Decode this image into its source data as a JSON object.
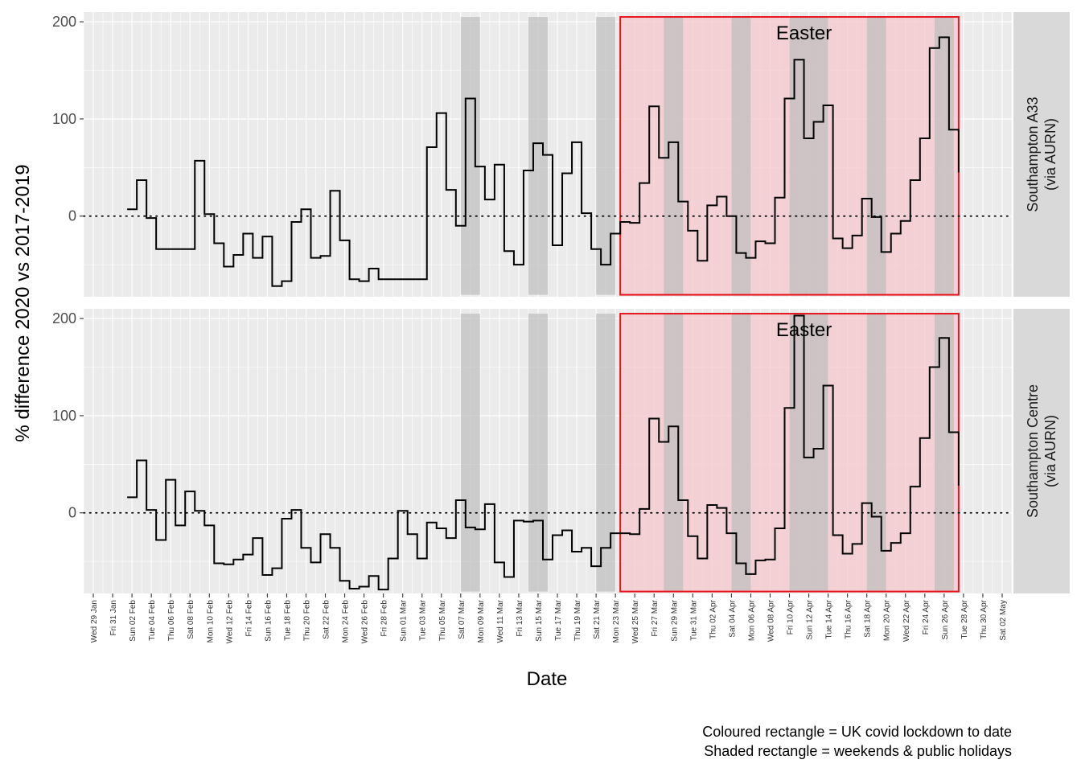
{
  "chart_data": {
    "type": "line",
    "step": true,
    "xlabel": "Date",
    "ylabel": "% difference 2020 vs 2017-2019",
    "ylim": [
      -83,
      210
    ],
    "yticks": [
      0,
      100,
      200
    ],
    "x_range": [
      "2020-01-28",
      "2020-05-03"
    ],
    "x_tick_labels": [
      "Wed 29 Jan",
      "Fri 31 Jan",
      "Sun 02 Feb",
      "Tue 04 Feb",
      "Thu 06 Feb",
      "Sat 08 Feb",
      "Mon 10 Feb",
      "Wed 12 Feb",
      "Fri 14 Feb",
      "Sun 16 Feb",
      "Tue 18 Feb",
      "Thu 20 Feb",
      "Sat 22 Feb",
      "Mon 24 Feb",
      "Wed 26 Feb",
      "Fri 28 Feb",
      "Sun 01 Mar",
      "Tue 03 Mar",
      "Thu 05 Mar",
      "Sat 07 Mar",
      "Mon 09 Mar",
      "Wed 11 Mar",
      "Fri 13 Mar",
      "Sun 15 Mar",
      "Tue 17 Mar",
      "Thu 19 Mar",
      "Sat 21 Mar",
      "Mon 23 Mar",
      "Wed 25 Mar",
      "Fri 27 Mar",
      "Sun 29 Mar",
      "Tue 31 Mar",
      "Thu 02 Apr",
      "Sat 04 Apr",
      "Mon 06 Apr",
      "Wed 08 Apr",
      "Fri 10 Apr",
      "Sun 12 Apr",
      "Tue 14 Apr",
      "Thu 16 Apr",
      "Sat 18 Apr",
      "Mon 20 Apr",
      "Wed 22 Apr",
      "Fri 24 Apr",
      "Sun 26 Apr",
      "Tue 28 Apr",
      "Thu 30 Apr",
      "Sat 02 May"
    ],
    "reference_line": {
      "y": 0,
      "style": "dotted"
    },
    "weekend_shading": [
      [
        "2020-03-07",
        "2020-03-08"
      ],
      [
        "2020-03-14",
        "2020-03-15"
      ],
      [
        "2020-03-21",
        "2020-03-22"
      ],
      [
        "2020-03-28",
        "2020-03-29"
      ],
      [
        "2020-04-04",
        "2020-04-05"
      ],
      [
        "2020-04-10",
        "2020-04-13"
      ],
      [
        "2020-04-18",
        "2020-04-19"
      ],
      [
        "2020-04-25",
        "2020-04-26"
      ]
    ],
    "lockdown": {
      "start": "2020-03-23",
      "end": "2020-04-27",
      "fill": "#f4c7cc",
      "border": "#e8141c"
    },
    "annotation": {
      "text": "Easter",
      "x": "2020-04-12"
    },
    "facets": [
      {
        "name": "Southampton A33\n(via AURN)",
        "series": [
          {
            "x": "2020-02-01",
            "y": 7
          },
          {
            "x": "2020-02-02",
            "y": 37
          },
          {
            "x": "2020-02-03",
            "y": -2
          },
          {
            "x": "2020-02-04",
            "y": -34
          },
          {
            "x": "2020-02-05",
            "y": -34
          },
          {
            "x": "2020-02-06",
            "y": -34
          },
          {
            "x": "2020-02-07",
            "y": -34
          },
          {
            "x": "2020-02-08",
            "y": 57
          },
          {
            "x": "2020-02-09",
            "y": 2
          },
          {
            "x": "2020-02-10",
            "y": -28
          },
          {
            "x": "2020-02-11",
            "y": -52
          },
          {
            "x": "2020-02-12",
            "y": -40
          },
          {
            "x": "2020-02-13",
            "y": -18
          },
          {
            "x": "2020-02-14",
            "y": -43
          },
          {
            "x": "2020-02-15",
            "y": -21
          },
          {
            "x": "2020-02-16",
            "y": -72
          },
          {
            "x": "2020-02-17",
            "y": -67
          },
          {
            "x": "2020-02-18",
            "y": -6
          },
          {
            "x": "2020-02-19",
            "y": 7
          },
          {
            "x": "2020-02-20",
            "y": -43
          },
          {
            "x": "2020-02-21",
            "y": -41
          },
          {
            "x": "2020-02-22",
            "y": 26
          },
          {
            "x": "2020-02-23",
            "y": -25
          },
          {
            "x": "2020-02-24",
            "y": -65
          },
          {
            "x": "2020-02-25",
            "y": -67
          },
          {
            "x": "2020-02-26",
            "y": -54
          },
          {
            "x": "2020-02-27",
            "y": -65
          },
          {
            "x": "2020-02-28",
            "y": -65
          },
          {
            "x": "2020-02-29",
            "y": -65
          },
          {
            "x": "2020-03-01",
            "y": -65
          },
          {
            "x": "2020-03-02",
            "y": -65
          },
          {
            "x": "2020-03-03",
            "y": 71
          },
          {
            "x": "2020-03-04",
            "y": 106
          },
          {
            "x": "2020-03-05",
            "y": 27
          },
          {
            "x": "2020-03-06",
            "y": -10
          },
          {
            "x": "2020-03-07",
            "y": 121
          },
          {
            "x": "2020-03-08",
            "y": 51
          },
          {
            "x": "2020-03-09",
            "y": 17
          },
          {
            "x": "2020-03-10",
            "y": 53
          },
          {
            "x": "2020-03-11",
            "y": -36
          },
          {
            "x": "2020-03-12",
            "y": -50
          },
          {
            "x": "2020-03-13",
            "y": 47
          },
          {
            "x": "2020-03-14",
            "y": 75
          },
          {
            "x": "2020-03-15",
            "y": 63
          },
          {
            "x": "2020-03-16",
            "y": -30
          },
          {
            "x": "2020-03-17",
            "y": 44
          },
          {
            "x": "2020-03-18",
            "y": 76
          },
          {
            "x": "2020-03-19",
            "y": 3
          },
          {
            "x": "2020-03-20",
            "y": -34
          },
          {
            "x": "2020-03-21",
            "y": -50
          },
          {
            "x": "2020-03-22",
            "y": -18
          },
          {
            "x": "2020-03-23",
            "y": -6
          },
          {
            "x": "2020-03-24",
            "y": -7
          },
          {
            "x": "2020-03-25",
            "y": 34
          },
          {
            "x": "2020-03-26",
            "y": 113
          },
          {
            "x": "2020-03-27",
            "y": 60
          },
          {
            "x": "2020-03-28",
            "y": 76
          },
          {
            "x": "2020-03-29",
            "y": 15
          },
          {
            "x": "2020-03-30",
            "y": -15
          },
          {
            "x": "2020-03-31",
            "y": -46
          },
          {
            "x": "2020-04-01",
            "y": 11
          },
          {
            "x": "2020-04-02",
            "y": 20
          },
          {
            "x": "2020-04-03",
            "y": 0
          },
          {
            "x": "2020-04-04",
            "y": -38
          },
          {
            "x": "2020-04-05",
            "y": -43
          },
          {
            "x": "2020-04-06",
            "y": -26
          },
          {
            "x": "2020-04-07",
            "y": -28
          },
          {
            "x": "2020-04-08",
            "y": 19
          },
          {
            "x": "2020-04-09",
            "y": 121
          },
          {
            "x": "2020-04-10",
            "y": 161
          },
          {
            "x": "2020-04-11",
            "y": 80
          },
          {
            "x": "2020-04-12",
            "y": 97
          },
          {
            "x": "2020-04-13",
            "y": 114
          },
          {
            "x": "2020-04-14",
            "y": -23
          },
          {
            "x": "2020-04-15",
            "y": -33
          },
          {
            "x": "2020-04-16",
            "y": -20
          },
          {
            "x": "2020-04-17",
            "y": 18
          },
          {
            "x": "2020-04-18",
            "y": -1
          },
          {
            "x": "2020-04-19",
            "y": -37
          },
          {
            "x": "2020-04-20",
            "y": -18
          },
          {
            "x": "2020-04-21",
            "y": -5
          },
          {
            "x": "2020-04-22",
            "y": 37
          },
          {
            "x": "2020-04-23",
            "y": 80
          },
          {
            "x": "2020-04-24",
            "y": 173
          },
          {
            "x": "2020-04-25",
            "y": 184
          },
          {
            "x": "2020-04-26",
            "y": 89
          },
          {
            "x": "2020-04-27",
            "y": 45
          }
        ]
      },
      {
        "name": "Southampton Centre\n(via AURN)",
        "series": [
          {
            "x": "2020-02-01",
            "y": 16
          },
          {
            "x": "2020-02-02",
            "y": 54
          },
          {
            "x": "2020-02-03",
            "y": 3
          },
          {
            "x": "2020-02-04",
            "y": -28
          },
          {
            "x": "2020-02-05",
            "y": 34
          },
          {
            "x": "2020-02-06",
            "y": -13
          },
          {
            "x": "2020-02-07",
            "y": 22
          },
          {
            "x": "2020-02-08",
            "y": 2
          },
          {
            "x": "2020-02-09",
            "y": -13
          },
          {
            "x": "2020-02-10",
            "y": -52
          },
          {
            "x": "2020-02-11",
            "y": -53
          },
          {
            "x": "2020-02-12",
            "y": -48
          },
          {
            "x": "2020-02-13",
            "y": -43
          },
          {
            "x": "2020-02-14",
            "y": -26
          },
          {
            "x": "2020-02-15",
            "y": -64
          },
          {
            "x": "2020-02-16",
            "y": -57
          },
          {
            "x": "2020-02-17",
            "y": -6
          },
          {
            "x": "2020-02-18",
            "y": 3
          },
          {
            "x": "2020-02-19",
            "y": -36
          },
          {
            "x": "2020-02-20",
            "y": -51
          },
          {
            "x": "2020-02-21",
            "y": -22
          },
          {
            "x": "2020-02-22",
            "y": -36
          },
          {
            "x": "2020-02-23",
            "y": -70
          },
          {
            "x": "2020-02-24",
            "y": -78
          },
          {
            "x": "2020-02-25",
            "y": -76
          },
          {
            "x": "2020-02-26",
            "y": -65
          },
          {
            "x": "2020-02-27",
            "y": -79
          },
          {
            "x": "2020-02-28",
            "y": -47
          },
          {
            "x": "2020-02-29",
            "y": 2
          },
          {
            "x": "2020-03-01",
            "y": -22
          },
          {
            "x": "2020-03-02",
            "y": -47
          },
          {
            "x": "2020-03-03",
            "y": -10
          },
          {
            "x": "2020-03-04",
            "y": -16
          },
          {
            "x": "2020-03-05",
            "y": -26
          },
          {
            "x": "2020-03-06",
            "y": 13
          },
          {
            "x": "2020-03-07",
            "y": -15
          },
          {
            "x": "2020-03-08",
            "y": -17
          },
          {
            "x": "2020-03-09",
            "y": 9
          },
          {
            "x": "2020-03-10",
            "y": -51
          },
          {
            "x": "2020-03-11",
            "y": -66
          },
          {
            "x": "2020-03-12",
            "y": -8
          },
          {
            "x": "2020-03-13",
            "y": -9
          },
          {
            "x": "2020-03-14",
            "y": -8
          },
          {
            "x": "2020-03-15",
            "y": -48
          },
          {
            "x": "2020-03-16",
            "y": -23
          },
          {
            "x": "2020-03-17",
            "y": -18
          },
          {
            "x": "2020-03-18",
            "y": -40
          },
          {
            "x": "2020-03-19",
            "y": -36
          },
          {
            "x": "2020-03-20",
            "y": -55
          },
          {
            "x": "2020-03-21",
            "y": -36
          },
          {
            "x": "2020-03-22",
            "y": -21
          },
          {
            "x": "2020-03-23",
            "y": -21
          },
          {
            "x": "2020-03-24",
            "y": -22
          },
          {
            "x": "2020-03-25",
            "y": 4
          },
          {
            "x": "2020-03-26",
            "y": 97
          },
          {
            "x": "2020-03-27",
            "y": 73
          },
          {
            "x": "2020-03-28",
            "y": 89
          },
          {
            "x": "2020-03-29",
            "y": 13
          },
          {
            "x": "2020-03-30",
            "y": -24
          },
          {
            "x": "2020-03-31",
            "y": -47
          },
          {
            "x": "2020-04-01",
            "y": 8
          },
          {
            "x": "2020-04-02",
            "y": 5
          },
          {
            "x": "2020-04-03",
            "y": -21
          },
          {
            "x": "2020-04-04",
            "y": -52
          },
          {
            "x": "2020-04-05",
            "y": -63
          },
          {
            "x": "2020-04-06",
            "y": -49
          },
          {
            "x": "2020-04-07",
            "y": -48
          },
          {
            "x": "2020-04-08",
            "y": -16
          },
          {
            "x": "2020-04-09",
            "y": 108
          },
          {
            "x": "2020-04-10",
            "y": 203
          },
          {
            "x": "2020-04-11",
            "y": 57
          },
          {
            "x": "2020-04-12",
            "y": 66
          },
          {
            "x": "2020-04-13",
            "y": 131
          },
          {
            "x": "2020-04-14",
            "y": -23
          },
          {
            "x": "2020-04-15",
            "y": -42
          },
          {
            "x": "2020-04-16",
            "y": -32
          },
          {
            "x": "2020-04-17",
            "y": 10
          },
          {
            "x": "2020-04-18",
            "y": -4
          },
          {
            "x": "2020-04-19",
            "y": -39
          },
          {
            "x": "2020-04-20",
            "y": -31
          },
          {
            "x": "2020-04-21",
            "y": -21
          },
          {
            "x": "2020-04-22",
            "y": 27
          },
          {
            "x": "2020-04-23",
            "y": 77
          },
          {
            "x": "2020-04-24",
            "y": 150
          },
          {
            "x": "2020-04-25",
            "y": 180
          },
          {
            "x": "2020-04-26",
            "y": 83
          },
          {
            "x": "2020-04-27",
            "y": 28
          }
        ]
      }
    ],
    "caption": [
      "Coloured rectangle = UK covid lockdown to date",
      "Shaded rectangle = weekends & public holidays"
    ],
    "colors": {
      "panel_bg": "#ebebeb",
      "grid": "#ffffff",
      "strip_bg": "#d9d9d9",
      "line": "#000000",
      "weekend_shade": "#bdbdbd"
    }
  }
}
